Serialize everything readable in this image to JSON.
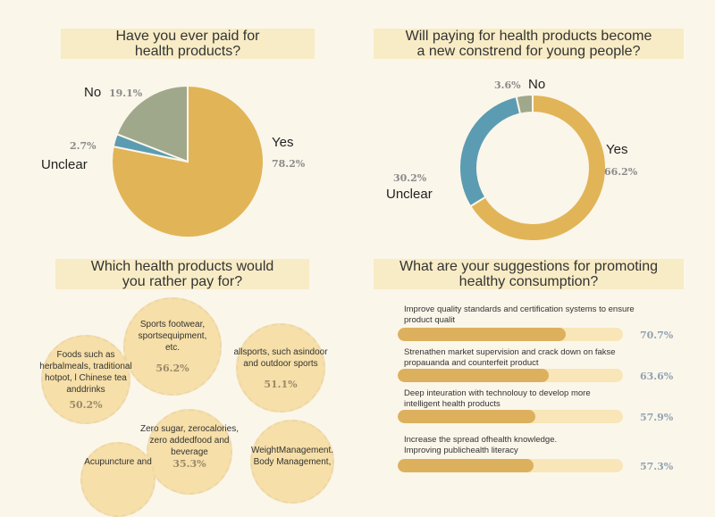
{
  "colors": {
    "yes": "#E1B457",
    "unclear": "#5B9CB2",
    "no": "#A0A88B"
  },
  "chart_data": [
    {
      "type": "pie",
      "title": "Have you ever paid for health products?",
      "labels": [
        "Yes",
        "Unclear",
        "No"
      ],
      "values": [
        78.2,
        2.7,
        19.1
      ],
      "value_labels": [
        "78.2%",
        "2.7%",
        "19.1%"
      ]
    },
    {
      "type": "pie",
      "donut": true,
      "title": "Will paying for health products become a new constrend for young people?",
      "labels": [
        "Yes",
        "Unclear",
        "No"
      ],
      "values": [
        66.2,
        30.2,
        3.6
      ],
      "value_labels": [
        "66.2%",
        "30.2%",
        "3.6%"
      ]
    },
    {
      "type": "bubble",
      "title": "Which health products would you rather pay for?",
      "items": [
        {
          "label": "Sports footwear, sportsequipment, etc.",
          "value": 56.2,
          "value_label": "56.2%"
        },
        {
          "label": "allsports, such asindoor and outdoor sports",
          "value": 51.1,
          "value_label": "51.1%"
        },
        {
          "label": "Foods such as herbalmeals, traditional hotpot, l Chinese tea anddrinks",
          "value": 50.2,
          "value_label": "50.2%"
        },
        {
          "label": "Zero sugar, zerocalories, zero addedfood and beverage",
          "value": 35.3,
          "value_label": "35.3%"
        },
        {
          "label": "WeightManagement. Body Management,",
          "value": null,
          "value_label": ""
        },
        {
          "label": "Acupuncture and",
          "value": null,
          "value_label": ""
        }
      ]
    },
    {
      "type": "bar",
      "orientation": "horizontal",
      "title": "What are your suggestions for promoting healthy consumption?",
      "categories": [
        "Improve quality standards and certification systems to ensure product qualit",
        "Strenathen market supervision and crack down on fakse propauanda and counterfeit product",
        "Deep inteuration with technolouy to develop more intelligent health products",
        "Increase the spread ofhealth knowledge. Improving publichealth literacy"
      ],
      "values": [
        70.7,
        63.6,
        57.9,
        57.3
      ],
      "value_labels": [
        "70.7%",
        "63.6%",
        "57.9%",
        "57.3%"
      ]
    }
  ],
  "titles": {
    "q1a": "Have you ever paid for",
    "q1b": "health products?",
    "q2a": "Will paying for health products become",
    "q2b": "a new constrend for young people?",
    "q3a": "Which health products would",
    "q3b": "you rather pay for?",
    "q4a": "What are your suggestions for promoting",
    "q4b": "healthy consumption?"
  }
}
